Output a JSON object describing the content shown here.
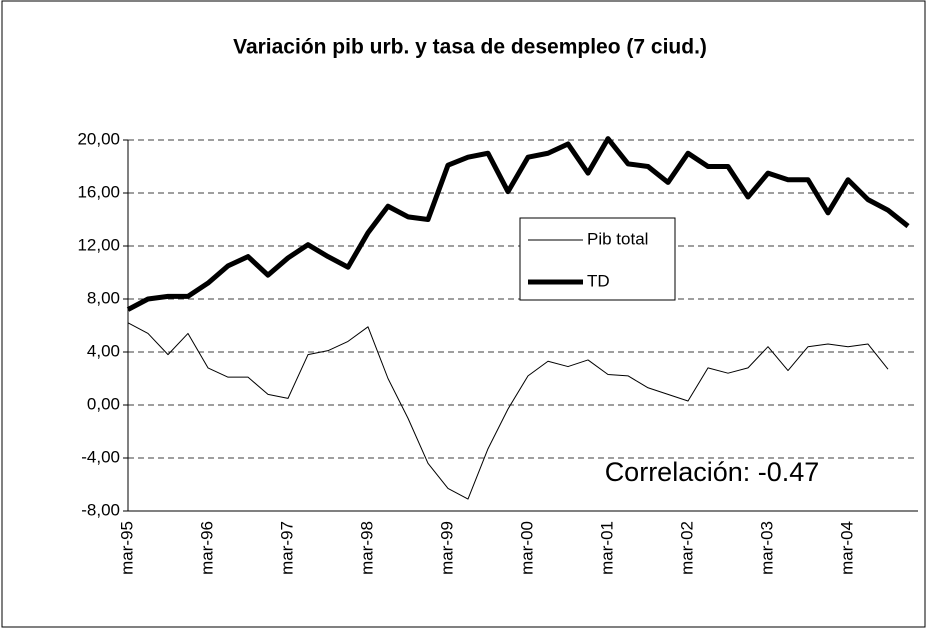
{
  "chart_data": {
    "type": "line",
    "title": "Variación pib urb. y tasa de desempleo (7 ciud.)",
    "annotation": "Correlación: -0.47",
    "categories": [
      "mar-95",
      null,
      null,
      null,
      "mar-96",
      null,
      null,
      null,
      "mar-97",
      null,
      null,
      null,
      "mar-98",
      null,
      null,
      null,
      "mar-99",
      null,
      null,
      null,
      "mar-00",
      null,
      null,
      null,
      "mar-01",
      null,
      null,
      null,
      "mar-02",
      null,
      null,
      null,
      "mar-03",
      null,
      null,
      null,
      "mar-04",
      null,
      null,
      null
    ],
    "series": [
      {
        "name": "Pib total",
        "color": "#000000",
        "width": 1,
        "values": [
          6.2,
          5.4,
          3.8,
          5.4,
          2.8,
          2.1,
          2.1,
          0.8,
          0.5,
          3.8,
          4.1,
          4.8,
          5.9,
          2.0,
          -1.0,
          -4.4,
          -6.3,
          -7.1,
          -3.3,
          -0.3,
          2.2,
          3.3,
          2.9,
          3.4,
          2.3,
          2.2,
          1.3,
          0.8,
          0.3,
          2.8,
          2.4,
          2.8,
          4.4,
          2.6,
          4.4,
          4.6,
          4.4,
          4.6,
          2.7,
          null
        ]
      },
      {
        "name": "TD",
        "color": "#000000",
        "width": 5,
        "values": [
          7.2,
          8.0,
          8.2,
          8.2,
          9.2,
          10.5,
          11.2,
          9.8,
          11.1,
          12.1,
          11.2,
          10.4,
          13.0,
          15.0,
          14.2,
          14.0,
          18.1,
          18.7,
          19.0,
          16.1,
          18.7,
          19.0,
          19.7,
          17.5,
          20.1,
          18.2,
          18.0,
          16.8,
          19.0,
          18.0,
          18.0,
          15.7,
          17.5,
          17.0,
          17.0,
          14.5,
          17.0,
          15.5,
          14.7,
          13.5
        ]
      }
    ],
    "ylim": [
      -8,
      20
    ],
    "yticks": [
      {
        "value": -8,
        "label": "-8,00"
      },
      {
        "value": -4,
        "label": "-4,00"
      },
      {
        "value": 0,
        "label": "0,00"
      },
      {
        "value": 4,
        "label": "4,00"
      },
      {
        "value": 8,
        "label": "8,00"
      },
      {
        "value": 12,
        "label": "12,00"
      },
      {
        "value": 16,
        "label": "16,00"
      },
      {
        "value": 20,
        "label": "20,00"
      }
    ],
    "grid": true
  }
}
